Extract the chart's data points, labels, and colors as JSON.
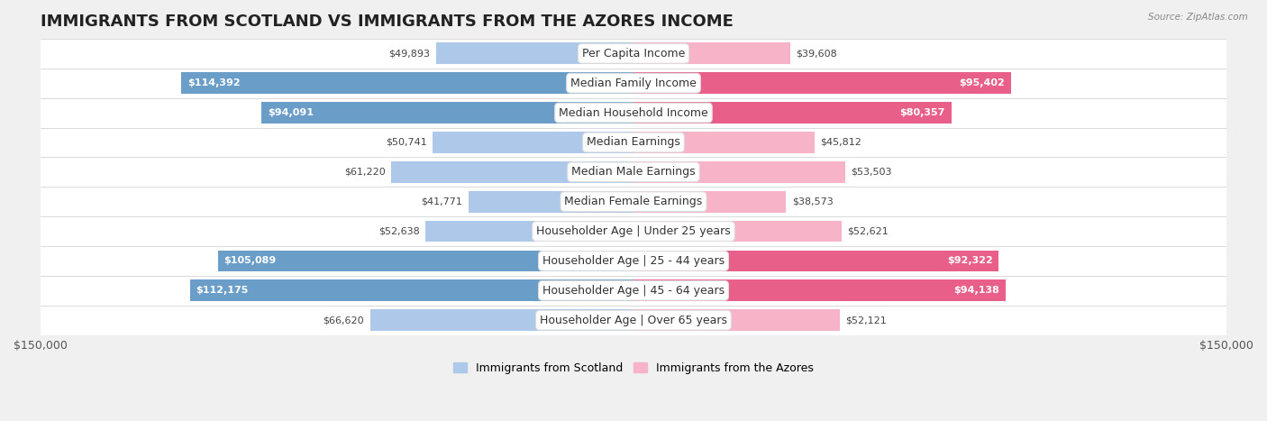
{
  "title": "IMMIGRANTS FROM SCOTLAND VS IMMIGRANTS FROM THE AZORES INCOME",
  "source": "Source: ZipAtlas.com",
  "categories": [
    "Per Capita Income",
    "Median Family Income",
    "Median Household Income",
    "Median Earnings",
    "Median Male Earnings",
    "Median Female Earnings",
    "Householder Age | Under 25 years",
    "Householder Age | 25 - 44 years",
    "Householder Age | 45 - 64 years",
    "Householder Age | Over 65 years"
  ],
  "scotland_values": [
    49893,
    114392,
    94091,
    50741,
    61220,
    41771,
    52638,
    105089,
    112175,
    66620
  ],
  "azores_values": [
    39608,
    95402,
    80357,
    45812,
    53503,
    38573,
    52621,
    92322,
    94138,
    52121
  ],
  "scotland_color_light": "#adc8e8",
  "scotland_color_dark": "#6a9ec8",
  "azores_color_light": "#f7b3c8",
  "azores_color_dark": "#e8608a",
  "scotland_label": "Immigrants from Scotland",
  "azores_label": "Immigrants from the Azores",
  "scotland_text_threshold": 80000,
  "azores_text_threshold": 80000,
  "max_value": 150000,
  "background_color": "#f0f0f0",
  "row_bg_color": "#ffffff",
  "row_alt_color": "#e8e8e8",
  "title_fontsize": 13,
  "label_fontsize": 9,
  "value_fontsize": 8,
  "axis_label_left": "$150,000",
  "axis_label_right": "$150,000"
}
